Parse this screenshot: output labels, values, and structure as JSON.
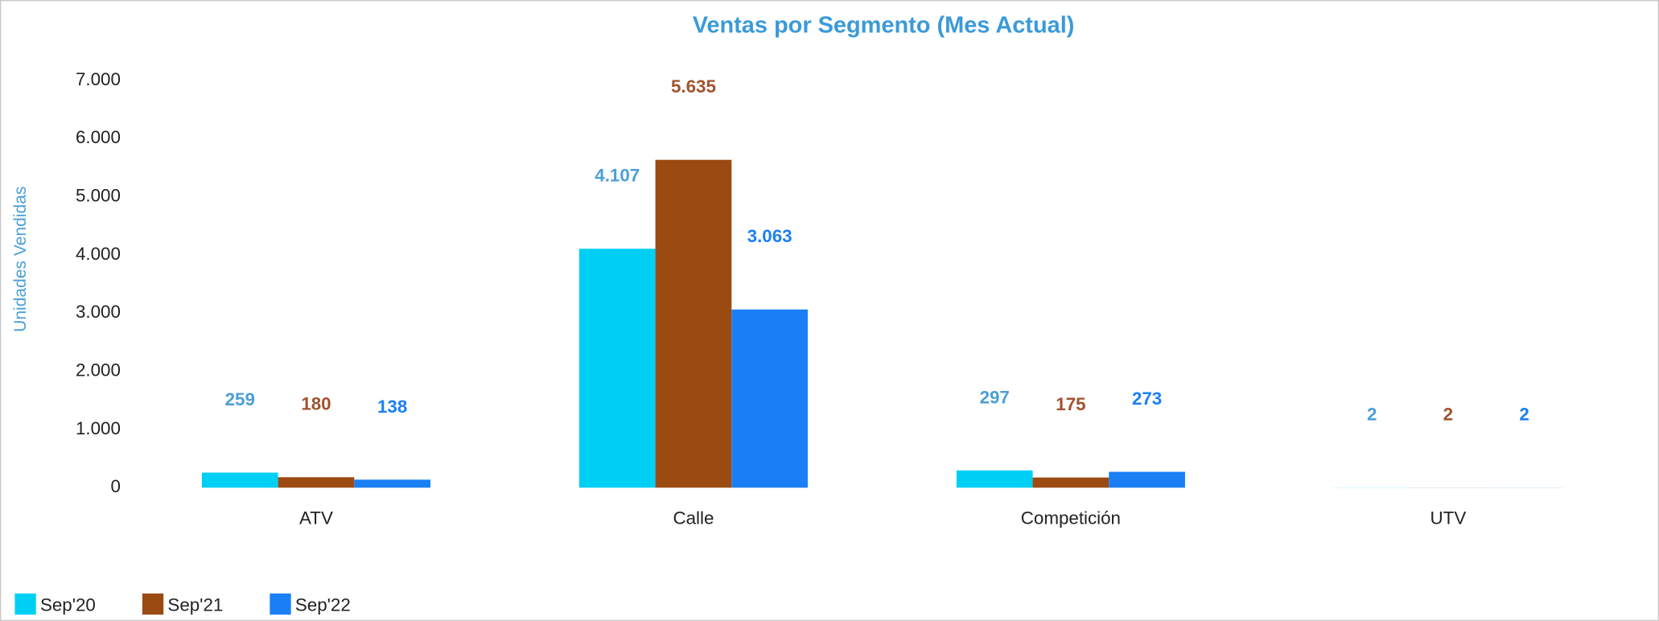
{
  "chart_data": {
    "type": "bar",
    "title": "Ventas por Segmento (Mes Actual)",
    "y_label": "Unidades Vendidas",
    "categories": [
      "ATV",
      "Calle",
      "Competición",
      "UTV"
    ],
    "series": [
      {
        "name": "Sep'20",
        "color": "#00cff5",
        "label_color": "#4a9fd8",
        "values": [
          259,
          4107,
          297,
          2
        ],
        "value_labels": [
          "259",
          "4.107",
          "297",
          "2"
        ]
      },
      {
        "name": "Sep'21",
        "color": "#9b4a12",
        "label_color": "#a0522d",
        "values": [
          180,
          5635,
          175,
          2
        ],
        "value_labels": [
          "180",
          "5.635",
          "175",
          "2"
        ]
      },
      {
        "name": "Sep'22",
        "color": "#1a7ff5",
        "label_color": "#1a7ff5",
        "values": [
          138,
          3063,
          273,
          2
        ],
        "value_labels": [
          "138",
          "3.063",
          "273",
          "2"
        ]
      }
    ],
    "ylim": [
      0,
      7000
    ],
    "yticks": [
      0,
      {
        "value": 1000,
        "label": "1.000"
      },
      {
        "value": 2000,
        "label": "2.000"
      },
      {
        "value": 3000,
        "label": "3.000"
      },
      {
        "value": 4000,
        "label": "4.000"
      },
      {
        "value": 5000,
        "label": "5.000"
      },
      {
        "value": 6000,
        "label": "6.000"
      },
      {
        "value": 7000,
        "label": "7.000"
      }
    ],
    "grid": false,
    "legend": "bottom-left"
  }
}
